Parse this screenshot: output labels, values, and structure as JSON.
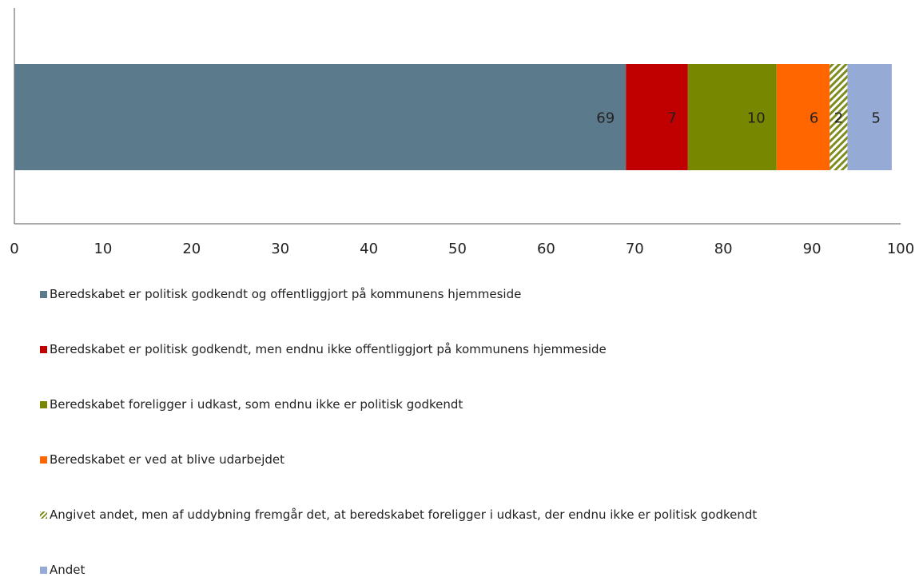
{
  "chart_data": {
    "type": "stacked-bar",
    "orientation": "horizontal",
    "xlim": [
      0,
      100
    ],
    "xticks": [
      0,
      10,
      20,
      30,
      40,
      50,
      60,
      70,
      80,
      90,
      100
    ],
    "series": [
      {
        "name": "Beredskabet er politisk godkendt og offentliggjort på kommunens hjemmeside",
        "color": "#5b7a8b",
        "values": [
          69
        ]
      },
      {
        "name": "Beredskabet er politisk godkendt, men endnu ikke offentliggjort på kommunens hjemmeside",
        "color": "#c00000",
        "values": [
          7
        ]
      },
      {
        "name": "Beredskabet foreligger i udkast, som endnu ikke er politisk godkendt",
        "color": "#778800",
        "values": [
          10
        ]
      },
      {
        "name": "Beredskabet er ved at blive udarbejdet",
        "color": "#ff6600",
        "values": [
          6
        ]
      },
      {
        "name": "Angivet andet, men af uddybning fremgår det, at beredskabet foreligger i udkast, der endnu ikke er politisk godkendt",
        "color": "#7e8c1e",
        "pattern": "diagonal",
        "values": [
          2
        ]
      },
      {
        "name": "Andet",
        "color": "#95aad4",
        "values": [
          5
        ]
      }
    ]
  }
}
